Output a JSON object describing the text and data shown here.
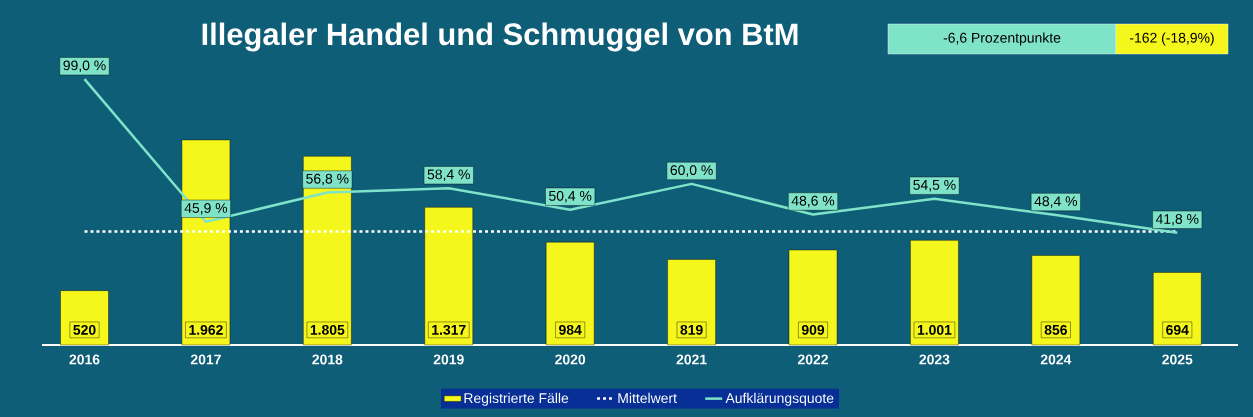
{
  "chart_data": {
    "type": "bar",
    "title": "Illegaler Handel und Schmuggel von BtM",
    "categories": [
      "2016",
      "2017",
      "2018",
      "2019",
      "2020",
      "2021",
      "2022",
      "2023",
      "2024",
      "2025"
    ],
    "series": [
      {
        "name": "Registrierte Fälle",
        "color": "#f5f71c",
        "values": [
          520,
          1962,
          1805,
          1317,
          984,
          819,
          909,
          1001,
          856,
          694
        ],
        "value_labels": [
          "520",
          "1.962",
          "1.805",
          "1.317",
          "984",
          "819",
          "909",
          "1.001",
          "856",
          "694"
        ]
      },
      {
        "name": "Aufklärungsquote",
        "type": "line",
        "axis": "y2",
        "color": "#7fe3c9",
        "values": [
          99.0,
          45.9,
          56.8,
          58.4,
          50.4,
          60.0,
          48.6,
          54.5,
          48.4,
          41.8
        ],
        "value_labels": [
          "99,0 %",
          "45,9 %",
          "56,8 %",
          "58,4 %",
          "50,4 %",
          "60,0 %",
          "48,6 %",
          "54,5 %",
          "48,4 %",
          "41,8 %"
        ]
      }
    ],
    "ref_lines": [
      {
        "axis": "y",
        "value": 1087,
        "label": "Mittelwert",
        "line_style": "dashed",
        "color": "#ffffff"
      }
    ],
    "annotations": [
      "-6,6 Prozentpunkte",
      "-162 (-18,9%)"
    ],
    "tick_labels": "x",
    "legend": "bottom",
    "marker": "none"
  }
}
